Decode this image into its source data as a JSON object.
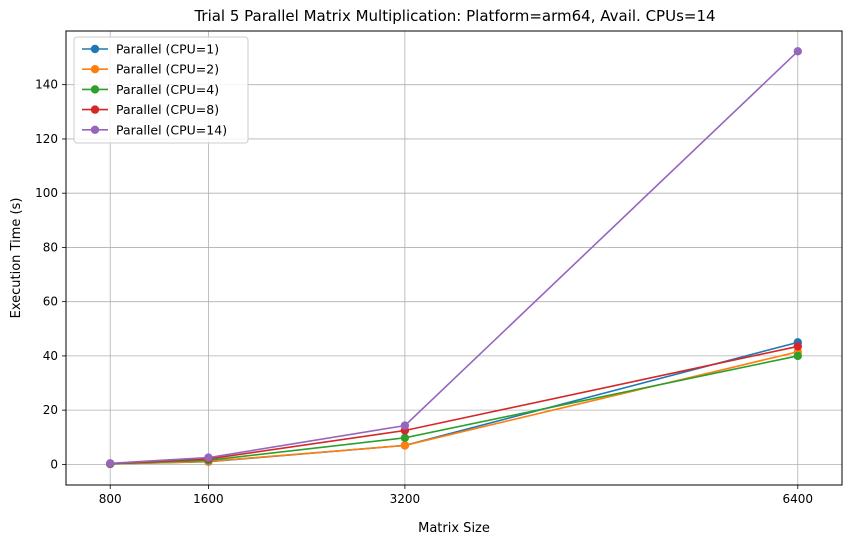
{
  "chart_data": {
    "type": "line",
    "title": "Trial 5 Parallel Matrix Multiplication: Platform=arm64, Avail. CPUs=14",
    "xlabel": "Matrix Size",
    "ylabel": "Execution Time (s)",
    "x": [
      800,
      1600,
      3200,
      6400
    ],
    "xticks": [
      800,
      1600,
      3200,
      6400
    ],
    "yticks": [
      0,
      20,
      40,
      60,
      80,
      100,
      120,
      140
    ],
    "xlim": [
      440,
      6760
    ],
    "ylim": [
      -7.6,
      159.8
    ],
    "grid": true,
    "legend_position": "top-left",
    "series": [
      {
        "name": "Parallel (CPU=1)",
        "color": "#1f77b4",
        "values": [
          0.15,
          1.0,
          7.0,
          45.0
        ]
      },
      {
        "name": "Parallel (CPU=2)",
        "color": "#ff7f0e",
        "values": [
          0.15,
          1.1,
          7.0,
          41.5
        ]
      },
      {
        "name": "Parallel (CPU=4)",
        "color": "#2ca02c",
        "values": [
          0.2,
          1.5,
          9.8,
          40.0
        ]
      },
      {
        "name": "Parallel (CPU=8)",
        "color": "#d62728",
        "values": [
          0.3,
          2.0,
          12.5,
          43.5
        ]
      },
      {
        "name": "Parallel (CPU=14)",
        "color": "#9467bd",
        "values": [
          0.4,
          2.5,
          14.3,
          152.3
        ]
      }
    ]
  }
}
